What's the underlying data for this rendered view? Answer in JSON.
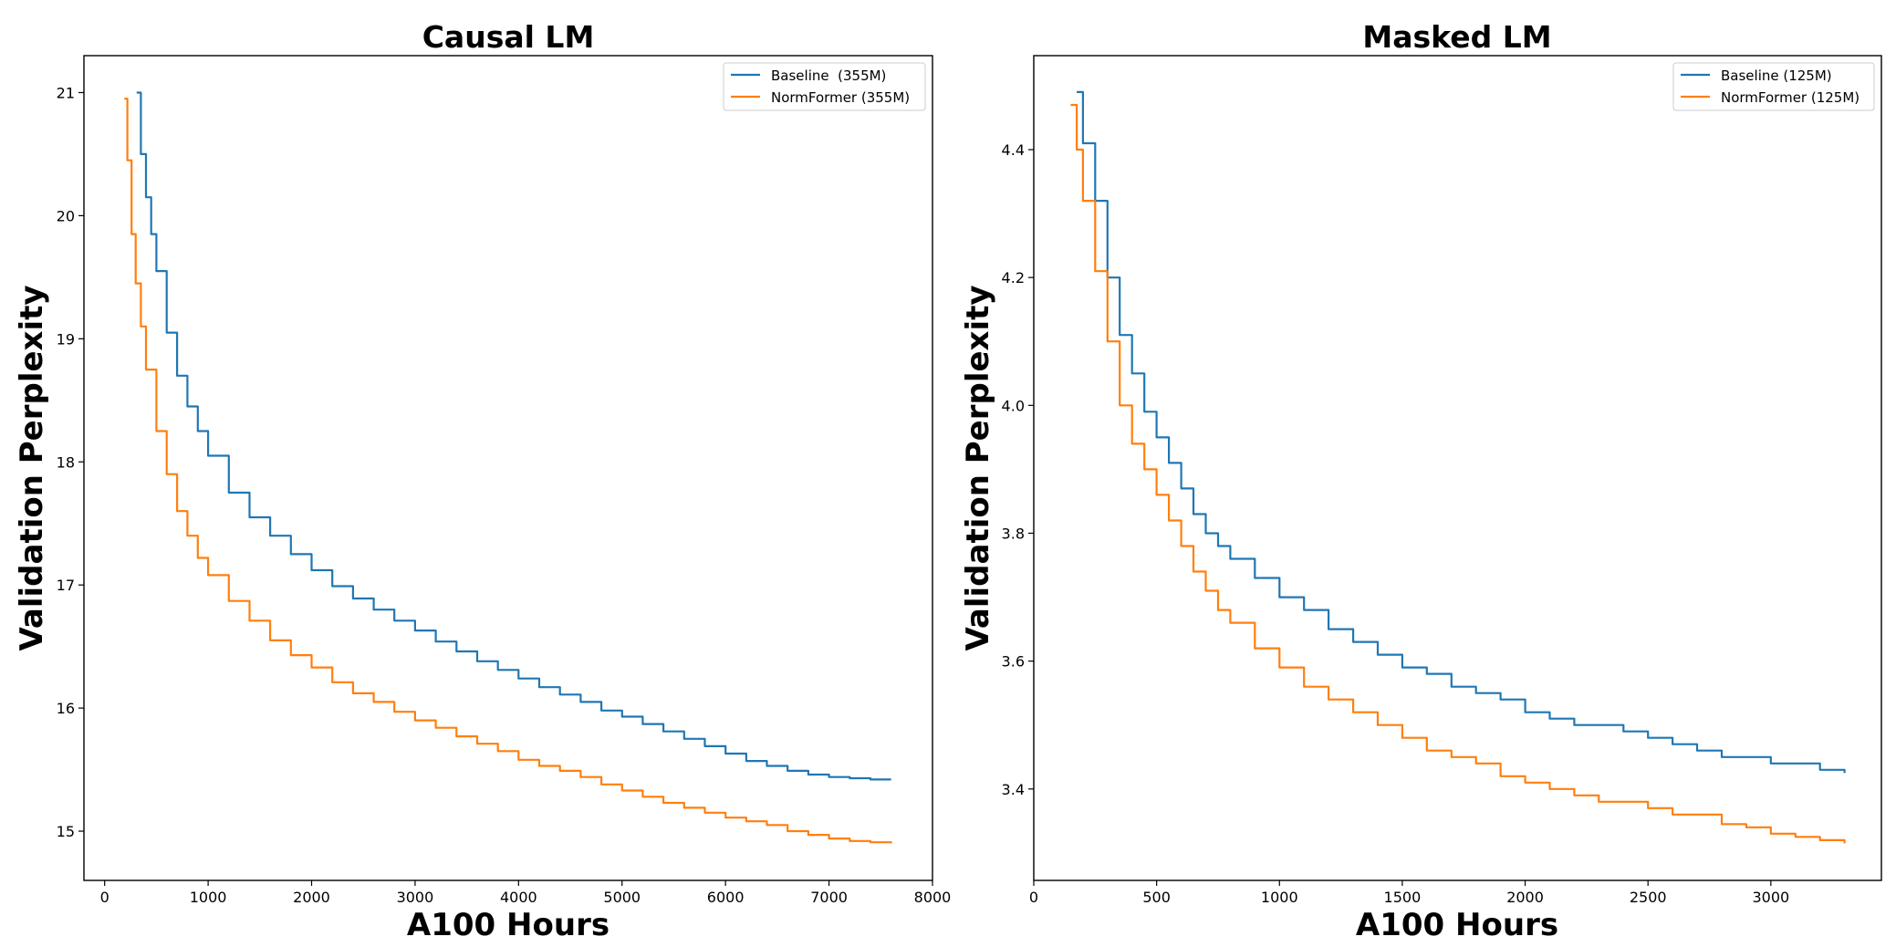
{
  "colors": {
    "baseline": "#1f77b4",
    "normformer": "#ff7f0e",
    "axes": "#000000",
    "legend_border": "#cccccc"
  },
  "chart_data": [
    {
      "type": "line",
      "title": "Causal LM",
      "xlabel": "A100 Hours",
      "ylabel": "Validation Perplexity",
      "xlim": [
        -200,
        8000
      ],
      "ylim": [
        14.6,
        21.3
      ],
      "xticks": [
        0,
        1000,
        2000,
        3000,
        4000,
        5000,
        6000,
        7000,
        8000
      ],
      "xtick_labels": [
        "0",
        "1000",
        "2000",
        "3000",
        "4000",
        "5000",
        "6000",
        "7000",
        "8000"
      ],
      "yticks": [
        15,
        16,
        17,
        18,
        19,
        20,
        21
      ],
      "ytick_labels": [
        "15",
        "16",
        "17",
        "18",
        "19",
        "20",
        "21"
      ],
      "legend_position": "top-right",
      "grid": false,
      "series": [
        {
          "name": "Baseline  (355M)",
          "color": "#1f77b4",
          "x": [
            310,
            350,
            400,
            450,
            500,
            600,
            700,
            800,
            900,
            1000,
            1200,
            1400,
            1600,
            1800,
            2000,
            2200,
            2400,
            2600,
            2800,
            3000,
            3200,
            3400,
            3600,
            3800,
            4000,
            4200,
            4400,
            4600,
            4800,
            5000,
            5200,
            5400,
            5600,
            5800,
            6000,
            6200,
            6400,
            6600,
            6800,
            7000,
            7200,
            7400,
            7600
          ],
          "y": [
            21.0,
            20.5,
            20.15,
            19.85,
            19.55,
            19.05,
            18.7,
            18.45,
            18.25,
            18.05,
            17.75,
            17.55,
            17.4,
            17.25,
            17.12,
            16.99,
            16.89,
            16.8,
            16.71,
            16.63,
            16.54,
            16.46,
            16.38,
            16.31,
            16.24,
            16.17,
            16.11,
            16.05,
            15.98,
            15.93,
            15.87,
            15.81,
            15.75,
            15.69,
            15.63,
            15.57,
            15.53,
            15.49,
            15.46,
            15.44,
            15.43,
            15.42,
            15.42
          ]
        },
        {
          "name": "NormFormer (355M)",
          "color": "#ff7f0e",
          "x": [
            190,
            220,
            260,
            300,
            350,
            400,
            500,
            600,
            700,
            800,
            900,
            1000,
            1200,
            1400,
            1600,
            1800,
            2000,
            2200,
            2400,
            2600,
            2800,
            3000,
            3200,
            3400,
            3600,
            3800,
            4000,
            4200,
            4400,
            4600,
            4800,
            5000,
            5200,
            5400,
            5600,
            5800,
            6000,
            6200,
            6400,
            6600,
            6800,
            7000,
            7200,
            7400,
            7600
          ],
          "y": [
            20.95,
            20.45,
            19.85,
            19.45,
            19.1,
            18.75,
            18.25,
            17.9,
            17.6,
            17.4,
            17.22,
            17.08,
            16.87,
            16.71,
            16.55,
            16.43,
            16.33,
            16.21,
            16.12,
            16.05,
            15.97,
            15.9,
            15.84,
            15.77,
            15.71,
            15.65,
            15.58,
            15.53,
            15.49,
            15.44,
            15.38,
            15.33,
            15.28,
            15.23,
            15.19,
            15.15,
            15.11,
            15.08,
            15.05,
            15.0,
            14.97,
            14.94,
            14.92,
            14.91,
            14.9
          ]
        }
      ]
    },
    {
      "type": "line",
      "title": "Masked LM",
      "xlabel": "A100 Hours",
      "ylabel": "Validation Perplexity",
      "xlim": [
        0,
        3450
      ],
      "ylim": [
        3.257,
        4.547
      ],
      "xticks": [
        0,
        500,
        1000,
        1500,
        2000,
        2500,
        3000
      ],
      "xtick_labels": [
        "0",
        "500",
        "1000",
        "1500",
        "2000",
        "2500",
        "3000"
      ],
      "yticks": [
        3.4,
        3.6,
        3.8,
        4.0,
        4.2,
        4.4
      ],
      "ytick_labels": [
        "3.4",
        "3.6",
        "3.8",
        "4.0",
        "4.2",
        "4.4"
      ],
      "legend_position": "top-right",
      "grid": false,
      "series": [
        {
          "name": "Baseline (125M)",
          "color": "#1f77b4",
          "x": [
            175,
            200,
            250,
            300,
            350,
            400,
            450,
            500,
            550,
            600,
            650,
            700,
            750,
            800,
            900,
            1000,
            1100,
            1200,
            1300,
            1400,
            1500,
            1600,
            1700,
            1800,
            1900,
            2000,
            2100,
            2200,
            2300,
            2400,
            2500,
            2600,
            2700,
            2800,
            2900,
            3000,
            3100,
            3200,
            3300
          ],
          "y": [
            4.49,
            4.41,
            4.32,
            4.2,
            4.11,
            4.05,
            3.99,
            3.95,
            3.91,
            3.87,
            3.83,
            3.8,
            3.78,
            3.76,
            3.73,
            3.7,
            3.68,
            3.65,
            3.63,
            3.61,
            3.59,
            3.58,
            3.56,
            3.55,
            3.54,
            3.52,
            3.51,
            3.5,
            3.5,
            3.49,
            3.48,
            3.47,
            3.46,
            3.45,
            3.45,
            3.44,
            3.44,
            3.43,
            3.425
          ]
        },
        {
          "name": "NormFormer (125M)",
          "color": "#ff7f0e",
          "x": [
            150,
            175,
            200,
            250,
            300,
            350,
            400,
            450,
            500,
            550,
            600,
            650,
            700,
            750,
            800,
            900,
            1000,
            1100,
            1200,
            1300,
            1400,
            1500,
            1600,
            1700,
            1800,
            1900,
            2000,
            2100,
            2200,
            2300,
            2400,
            2500,
            2600,
            2700,
            2800,
            2900,
            3000,
            3100,
            3200,
            3300
          ],
          "y": [
            4.47,
            4.4,
            4.32,
            4.21,
            4.1,
            4.0,
            3.94,
            3.9,
            3.86,
            3.82,
            3.78,
            3.74,
            3.71,
            3.68,
            3.66,
            3.62,
            3.59,
            3.56,
            3.54,
            3.52,
            3.5,
            3.48,
            3.46,
            3.45,
            3.44,
            3.42,
            3.41,
            3.4,
            3.39,
            3.38,
            3.38,
            3.37,
            3.36,
            3.36,
            3.345,
            3.34,
            3.33,
            3.325,
            3.32,
            3.315
          ]
        }
      ]
    }
  ]
}
